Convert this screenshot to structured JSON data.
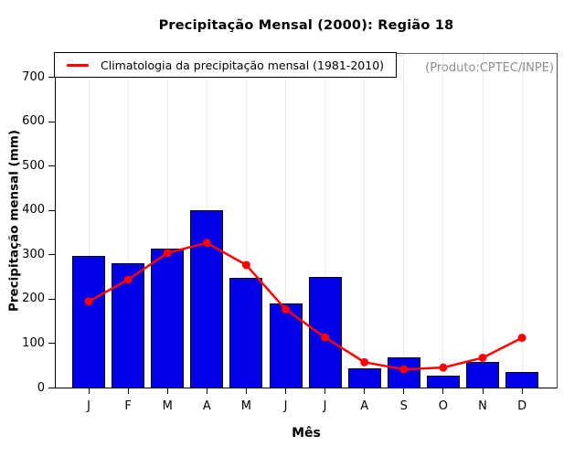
{
  "figure": {
    "title": "Precipitação Mensal (2000): Região 18",
    "watermark": "(Produto:CPTEC/INPE)",
    "legend_label": "Climatologia da precipitação mensal (1981-2010)",
    "ylabel": "Precipitação mensal (mm)",
    "xlabel": "Mês"
  },
  "colors": {
    "bar_fill": "#0000E6",
    "bar_border": "#000000",
    "climatology_line": "#FF0000",
    "grid": "#D8D8D8",
    "watermark_text": "#8C8C8C",
    "axis": "#000000"
  },
  "chart_data": {
    "type": "bar",
    "title": "Precipitação Mensal (2000): Região 18",
    "xlabel": "Mês",
    "ylabel": "Precipitação mensal (mm)",
    "categories": [
      "J",
      "F",
      "M",
      "A",
      "M",
      "J",
      "J",
      "A",
      "S",
      "O",
      "N",
      "D"
    ],
    "series": [
      {
        "name": "Precipitação Mensal (2000)",
        "type": "bar",
        "color": "#0000E6",
        "values": [
          297,
          282,
          313,
          400,
          249,
          190,
          250,
          44,
          70,
          28,
          58,
          36
        ]
      },
      {
        "name": "Climatologia da precipitação mensal (1981-2010)",
        "type": "line",
        "color": "#FF0000",
        "marker": "filled-circle",
        "values": [
          195,
          244,
          304,
          327,
          277,
          177,
          114,
          58,
          42,
          46,
          68,
          113
        ]
      }
    ],
    "yticks": [
      0,
      100,
      200,
      300,
      400,
      500,
      600,
      700
    ],
    "ylim": [
      0,
      755
    ],
    "grid": "vertical-dotted",
    "legend_position": "top-left",
    "annotation": "(Produto:CPTEC/INPE)"
  }
}
